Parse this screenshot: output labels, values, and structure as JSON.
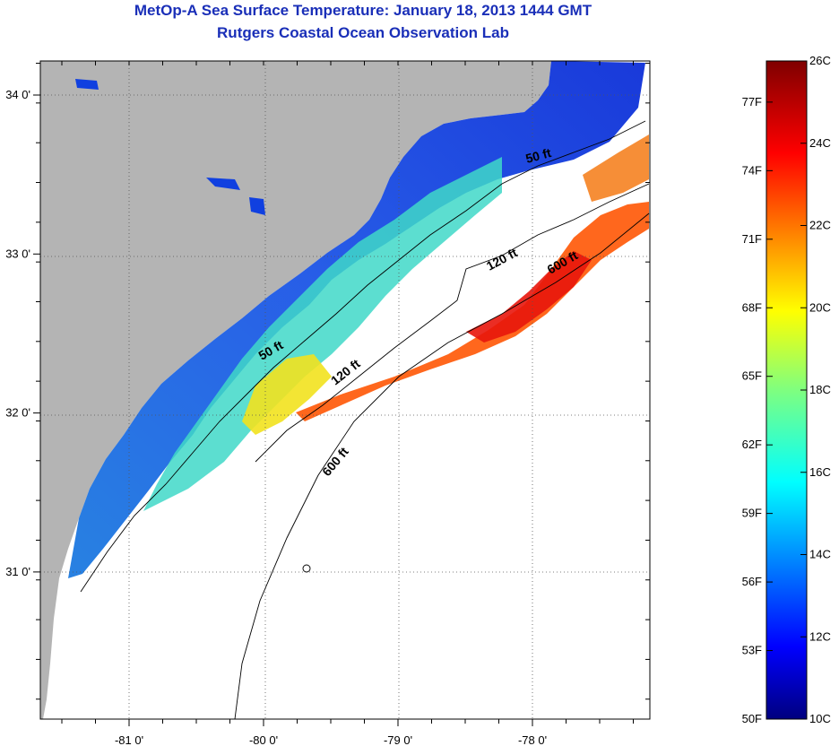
{
  "header": {
    "title": "MetOp-A Sea Surface Temperature:  January 18, 2013 1444 GMT",
    "subtitle": "Rutgers Coastal Ocean Observation Lab"
  },
  "map": {
    "region": "South Carolina / Georgia continental shelf",
    "land_color": "#b4b4b4",
    "cloud_color": "#ffffff",
    "lon_ticks": [
      {
        "value": -81,
        "label": "-81 0'"
      },
      {
        "value": -80,
        "label": "-80 0'"
      },
      {
        "value": -79,
        "label": "-79 0'"
      },
      {
        "value": -78,
        "label": "-78 0'"
      }
    ],
    "lat_ticks": [
      {
        "value": 34,
        "label": "34 0'"
      },
      {
        "value": 33,
        "label": "33 0'"
      },
      {
        "value": 32,
        "label": "32 0'"
      },
      {
        "value": 31,
        "label": "31 0'"
      }
    ],
    "isobath_labels": [
      {
        "text": "50 ft",
        "depth": "50 ft"
      },
      {
        "text": "50 ft",
        "depth": "50 ft"
      },
      {
        "text": "120 ft",
        "depth": "120 ft"
      },
      {
        "text": "120 ft",
        "depth": "120 ft"
      },
      {
        "text": "600 ft",
        "depth": "600 ft"
      },
      {
        "text": "600 ft",
        "depth": "600 ft"
      }
    ]
  },
  "colorbar": {
    "celsius_labels": [
      "26C",
      "24C",
      "22C",
      "20C",
      "18C",
      "16C",
      "14C",
      "12C",
      "10C"
    ],
    "fahrenheit_labels": [
      "77F",
      "74F",
      "71F",
      "68F",
      "65F",
      "62F",
      "59F",
      "56F",
      "53F",
      "50F"
    ],
    "range_c": [
      10,
      26
    ],
    "range_f": [
      50,
      78.8
    ]
  }
}
